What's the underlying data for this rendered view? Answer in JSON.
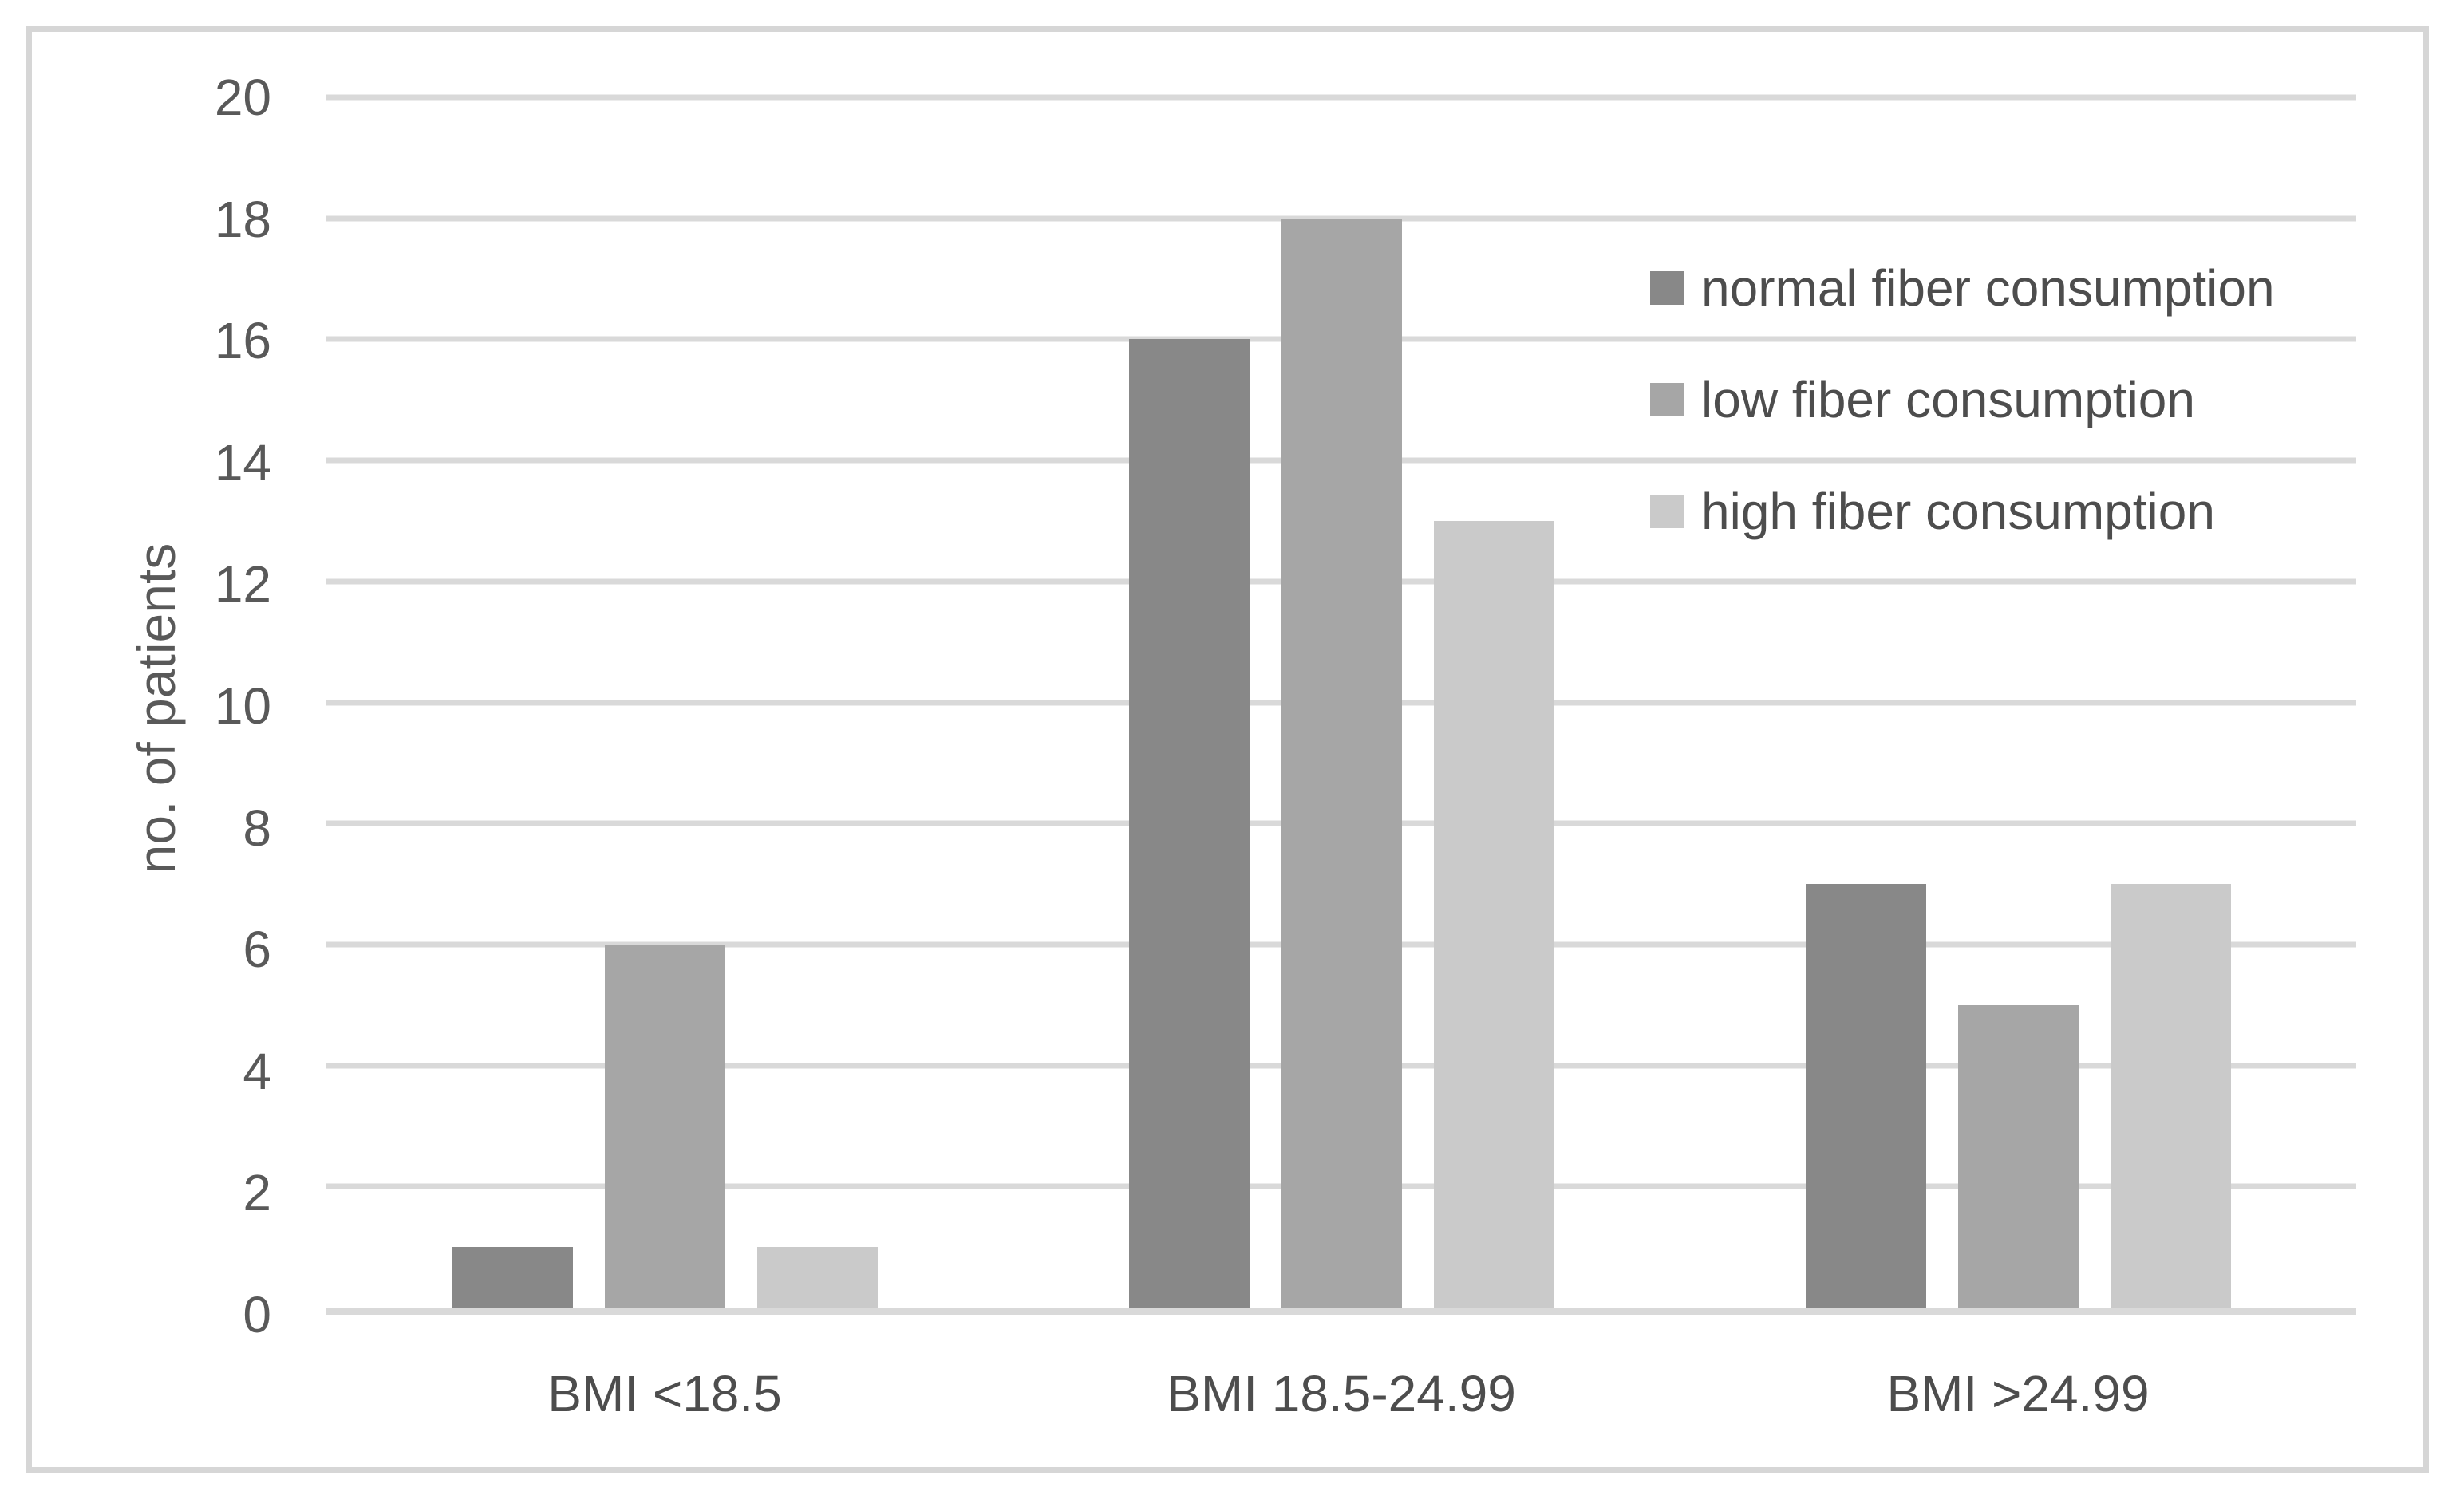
{
  "chart_data": {
    "type": "bar",
    "title": "",
    "xlabel": "",
    "ylabel": "no. of patients",
    "categories": [
      "BMI <18.5",
      "BMI 18.5-24.99",
      "BMI >24.99"
    ],
    "series": [
      {
        "name": "normal fiber consumption",
        "color": "#888888",
        "values": [
          1,
          16,
          7
        ]
      },
      {
        "name": "low fiber consumption",
        "color": "#a6a6a6",
        "values": [
          6,
          18,
          5
        ]
      },
      {
        "name": "high fiber consumption",
        "color": "#cacaca",
        "values": [
          1,
          13,
          7
        ]
      }
    ],
    "ylim": [
      0,
      20
    ],
    "ytick_step": 2,
    "grid": true,
    "legend_position": "inside-top-right",
    "gridline_color": "#d9d9d9",
    "axis_text_color": "#595959",
    "label_text_color": "#4d4d4d",
    "frame_color": "#d6d6d6",
    "background_color": "#ffffff"
  }
}
